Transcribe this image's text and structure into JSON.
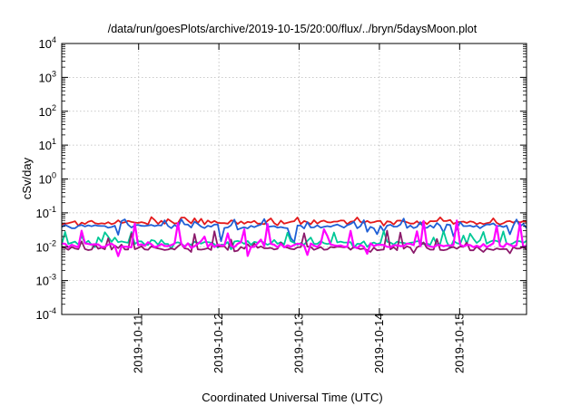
{
  "chart_data": {
    "type": "line",
    "title": "/data/run/goesPlots/archive/2019-10-15/20:00/flux/../bryn/5daysMoon.plot",
    "xlabel": "Coordinated Universal Time (UTC)",
    "ylabel": "cSv/day",
    "x_range": [
      "2019-10-10T01:00",
      "2019-10-15T20:00"
    ],
    "ylim": [
      0.0001,
      10000
    ],
    "yscale": "log",
    "grid": true,
    "legend": "none",
    "y_ticks": [
      {
        "value": 0.0001,
        "base": "10",
        "exp": "-4"
      },
      {
        "value": 0.001,
        "base": "10",
        "exp": "-3"
      },
      {
        "value": 0.01,
        "base": "10",
        "exp": "-2"
      },
      {
        "value": 0.1,
        "base": "10",
        "exp": "-1"
      },
      {
        "value": 1,
        "base": "10",
        "exp": "0"
      },
      {
        "value": 10,
        "base": "10",
        "exp": "1"
      },
      {
        "value": 100,
        "base": "10",
        "exp": "2"
      },
      {
        "value": 1000,
        "base": "10",
        "exp": "3"
      },
      {
        "value": 10000,
        "base": "10",
        "exp": "4"
      }
    ],
    "x_ticks": [
      "2019-10-11",
      "2019-10-12",
      "2019-10-13",
      "2019-10-14",
      "2019-10-15"
    ],
    "series": [
      {
        "color": "#e41a1c",
        "low": 0.038,
        "high": 0.075,
        "base": 0.052
      },
      {
        "color": "#1f5fd6",
        "low": 0.012,
        "high": 0.07,
        "base": 0.04
      },
      {
        "color": "#00c896",
        "low": 0.008,
        "high": 0.03,
        "base": 0.013
      },
      {
        "color": "#8b1a6b",
        "low": 0.006,
        "high": 0.03,
        "base": 0.009
      },
      {
        "color": "#ff00ff",
        "low": 0.005,
        "high": 0.06,
        "base": 0.011
      }
    ]
  }
}
